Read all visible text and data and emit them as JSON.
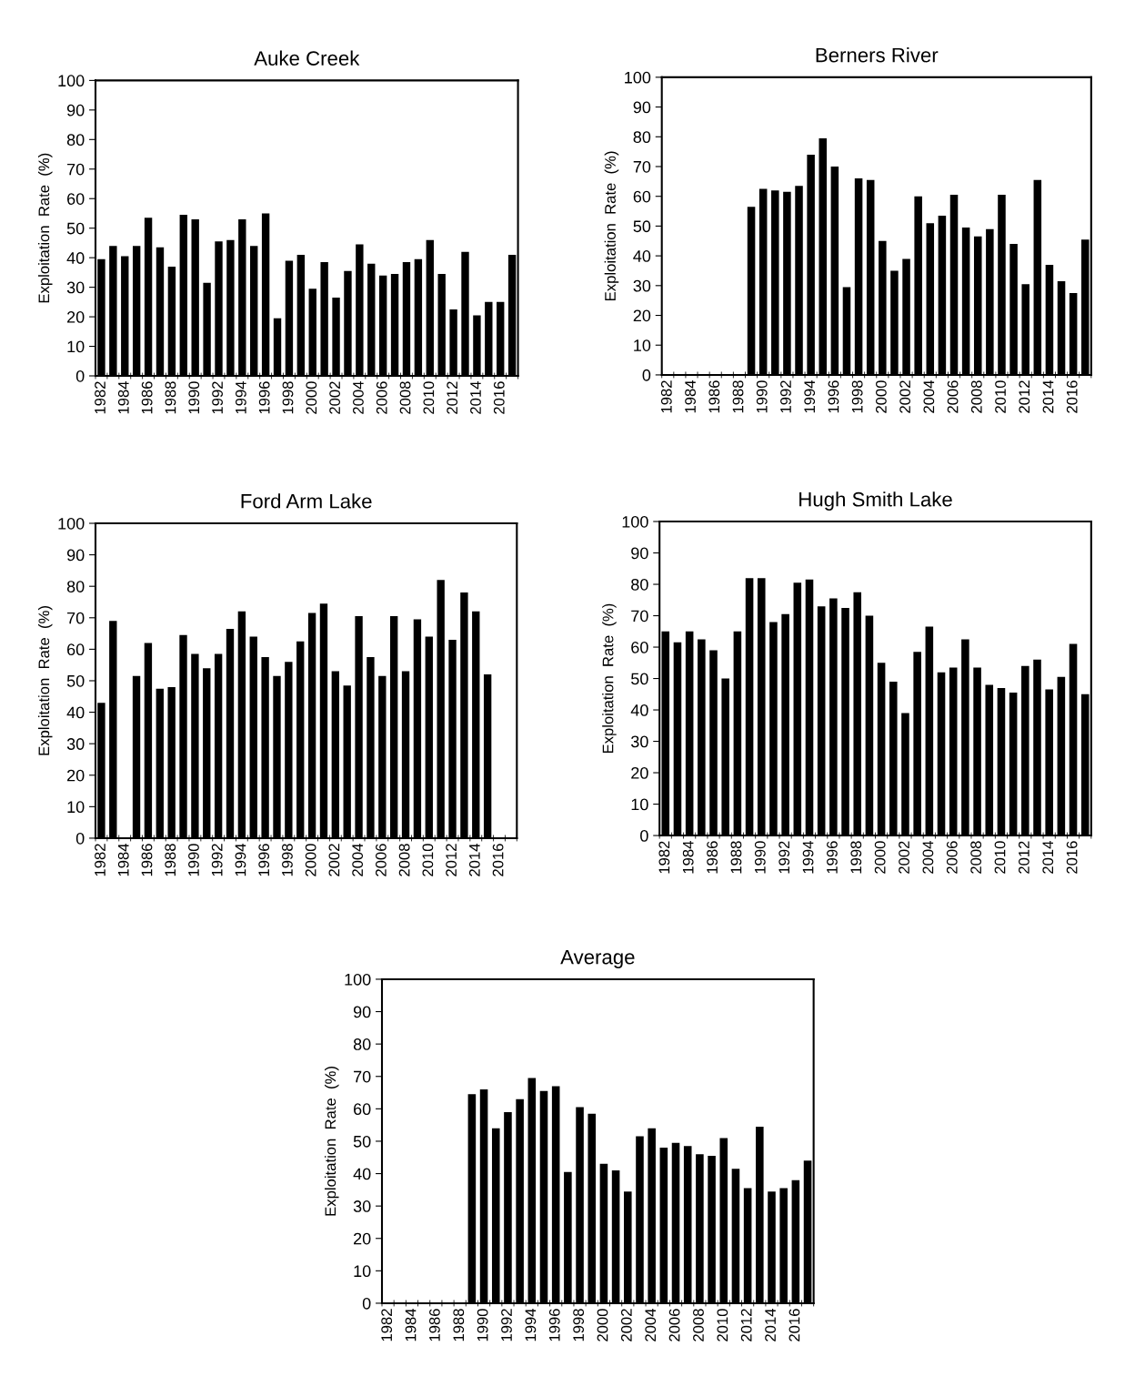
{
  "chart_data": [
    {
      "type": "bar",
      "title": "Auke Creek",
      "ylabel": "Exploitation  Rate  (%)",
      "categories": [
        "1982",
        null,
        "1984",
        null,
        "1986",
        null,
        "1988",
        null,
        "1990",
        null,
        "1992",
        null,
        "1994",
        null,
        "1996",
        null,
        "1998",
        null,
        "2000",
        null,
        "2002",
        null,
        "2004",
        null,
        "2006",
        null,
        "2008",
        null,
        "2010",
        null,
        "2012",
        null,
        "2014",
        null,
        "2016",
        null
      ],
      "color": "#000000",
      "ylim": [
        0,
        100
      ],
      "yticks": [
        0,
        10,
        20,
        30,
        40,
        50,
        60,
        70,
        80,
        90,
        100
      ],
      "values": [
        39.5,
        44,
        40.5,
        44,
        53.5,
        43.5,
        37,
        54.5,
        53,
        31.5,
        45.5,
        46,
        53,
        44,
        55,
        19.5,
        39,
        41,
        29.5,
        38.5,
        26.5,
        35.5,
        44.5,
        38,
        34,
        34.5,
        38.5,
        39.5,
        46,
        34.5,
        22.5,
        42,
        20.5,
        25,
        25,
        41
      ]
    },
    {
      "type": "bar",
      "title": "Berners River",
      "ylabel": "Exploitation  Rate  (%)",
      "categories": [
        "1982",
        null,
        "1984",
        null,
        "1986",
        null,
        "1988",
        null,
        "1990",
        null,
        "1992",
        null,
        "1994",
        null,
        "1996",
        null,
        "1998",
        null,
        "2000",
        null,
        "2002",
        null,
        "2004",
        null,
        "2006",
        null,
        "2008",
        null,
        "2010",
        null,
        "2012",
        null,
        "2014",
        null,
        "2016",
        null
      ],
      "color": "#000000",
      "ylim": [
        0,
        100
      ],
      "yticks": [
        0,
        10,
        20,
        30,
        40,
        50,
        60,
        70,
        80,
        90,
        100
      ],
      "values": [
        null,
        null,
        null,
        null,
        null,
        null,
        null,
        56.5,
        62.5,
        62,
        61.5,
        63.5,
        74,
        79.5,
        70,
        29.5,
        66,
        65.5,
        45,
        35,
        39,
        60,
        51,
        53.5,
        60.5,
        49.5,
        46.5,
        49,
        60.5,
        44,
        30.5,
        65.5,
        37,
        31.5,
        27.5,
        45.5
      ]
    },
    {
      "type": "bar",
      "title": "Ford Arm Lake",
      "ylabel": "Exploitation  Rate  (%)",
      "categories": [
        "1982",
        null,
        "1984",
        null,
        "1986",
        null,
        "1988",
        null,
        "1990",
        null,
        "1992",
        null,
        "1994",
        null,
        "1996",
        null,
        "1998",
        null,
        "2000",
        null,
        "2002",
        null,
        "2004",
        null,
        "2006",
        null,
        "2008",
        null,
        "2010",
        null,
        "2012",
        null,
        "2014",
        null,
        "2016",
        null
      ],
      "color": "#000000",
      "ylim": [
        0,
        100
      ],
      "yticks": [
        0,
        10,
        20,
        30,
        40,
        50,
        60,
        70,
        80,
        90,
        100
      ],
      "values": [
        43,
        69,
        null,
        51.5,
        62,
        47.5,
        48,
        64.5,
        58.5,
        54,
        58.5,
        66.5,
        72,
        64,
        57.5,
        51.5,
        56,
        62.5,
        71.5,
        74.5,
        53,
        48.5,
        70.5,
        57.5,
        51.5,
        70.5,
        53,
        69.5,
        64,
        82,
        63,
        78,
        72,
        52,
        null,
        null
      ]
    },
    {
      "type": "bar",
      "title": "Hugh Smith Lake",
      "ylabel": "Exploitation  Rate  (%)",
      "categories": [
        "1982",
        null,
        "1984",
        null,
        "1986",
        null,
        "1988",
        null,
        "1990",
        null,
        "1992",
        null,
        "1994",
        null,
        "1996",
        null,
        "1998",
        null,
        "2000",
        null,
        "2002",
        null,
        "2004",
        null,
        "2006",
        null,
        "2008",
        null,
        "2010",
        null,
        "2012",
        null,
        "2014",
        null,
        "2016",
        null
      ],
      "color": "#000000",
      "ylim": [
        0,
        100
      ],
      "yticks": [
        0,
        10,
        20,
        30,
        40,
        50,
        60,
        70,
        80,
        90,
        100
      ],
      "values": [
        65,
        61.5,
        65,
        62.5,
        59,
        50,
        65,
        82,
        82,
        68,
        70.5,
        80.5,
        81.5,
        73,
        75.5,
        72.5,
        77.5,
        70,
        55,
        49,
        39,
        58.5,
        66.5,
        52,
        53.5,
        62.5,
        53.5,
        48,
        47,
        45.5,
        54,
        56,
        46.5,
        50.5,
        61,
        45
      ]
    },
    {
      "type": "bar",
      "title": "Average",
      "ylabel": "Exploitation  Rate  (%)",
      "categories": [
        "1982",
        null,
        "1984",
        null,
        "1986",
        null,
        "1988",
        null,
        "1990",
        null,
        "1992",
        null,
        "1994",
        null,
        "1996",
        null,
        "1998",
        null,
        "2000",
        null,
        "2002",
        null,
        "2004",
        null,
        "2006",
        null,
        "2008",
        null,
        "2010",
        null,
        "2012",
        null,
        "2014",
        null,
        "2016",
        null
      ],
      "color": "#000000",
      "ylim": [
        0,
        100
      ],
      "yticks": [
        0,
        10,
        20,
        30,
        40,
        50,
        60,
        70,
        80,
        90,
        100
      ],
      "values": [
        null,
        null,
        null,
        null,
        null,
        null,
        null,
        64.5,
        66,
        54,
        59,
        63,
        69.5,
        65.5,
        67,
        40.5,
        60.5,
        58.5,
        43,
        41,
        34.5,
        51.5,
        54,
        48,
        49.5,
        48.5,
        46,
        45.5,
        51,
        41.5,
        35.5,
        54.5,
        34.5,
        35.5,
        38,
        44
      ]
    }
  ]
}
